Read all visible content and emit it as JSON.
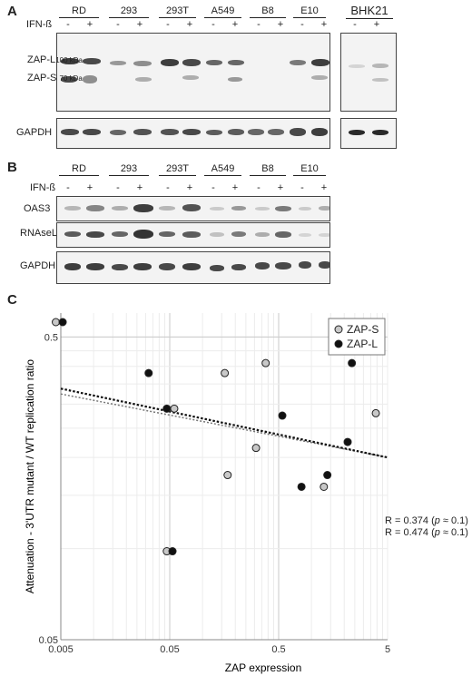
{
  "panelA": {
    "letter": "A",
    "treatment_label": "IFN-ß",
    "cell_lines": [
      "RD",
      "293",
      "293T",
      "A549",
      "B8",
      "E10"
    ],
    "separate_line": "BHK21",
    "signs": [
      "-",
      "+"
    ],
    "rows": {
      "zapl": "ZAP-L",
      "zapl_kda": "100 kDa",
      "zaps": "ZAP-S",
      "zaps_kda": "70 kDa",
      "gapdh": "GAPDH"
    }
  },
  "panelB": {
    "letter": "B",
    "treatment_label": "IFN-ß",
    "cell_lines": [
      "RD",
      "293",
      "293T",
      "A549",
      "B8",
      "E10"
    ],
    "signs": [
      "-",
      "+"
    ],
    "rows": [
      "OAS3",
      "RNAseL",
      "GAPDH"
    ]
  },
  "panelC": {
    "letter": "C",
    "chart_data": {
      "type": "scatter",
      "xlabel": "ZAP expression",
      "ylabel": "Attenuation - 3'UTR mutant / WT replication ratio",
      "x_scale": "log",
      "y_scale": "log",
      "xlim": [
        0.005,
        5
      ],
      "ylim": [
        0.05,
        0.6
      ],
      "x_ticks": [
        "0.005",
        "0.05",
        "0.5",
        "5"
      ],
      "y_ticks": [
        "0.05",
        "0.5"
      ],
      "grid": true,
      "legend_position": "top-right",
      "series": [
        {
          "name": "ZAP-S",
          "color": "#c8c8c8",
          "points": [
            [
              0.0045,
              0.56
            ],
            [
              0.047,
              0.098
            ],
            [
              0.055,
              0.29
            ],
            [
              0.16,
              0.38
            ],
            [
              0.38,
              0.41
            ],
            [
              0.17,
              0.175
            ],
            [
              0.31,
              0.215
            ],
            [
              1.3,
              0.16
            ],
            [
              3.9,
              0.28
            ]
          ]
        },
        {
          "name": "ZAP-L",
          "color": "#111111",
          "points": [
            [
              0.0052,
              0.56
            ],
            [
              0.053,
              0.098
            ],
            [
              0.032,
              0.38
            ],
            [
              0.047,
              0.29
            ],
            [
              0.54,
              0.275
            ],
            [
              0.81,
              0.16
            ],
            [
              1.4,
              0.175
            ],
            [
              2.15,
              0.225
            ],
            [
              2.35,
              0.41
            ]
          ]
        }
      ],
      "annotations": [
        {
          "text": "R = 0.374 (",
          "p": "p",
          "rest": " ≈ 0.1)"
        },
        {
          "text": "R = 0.474 (",
          "p": "p",
          "rest": " ≈ 0.1)"
        }
      ]
    }
  }
}
